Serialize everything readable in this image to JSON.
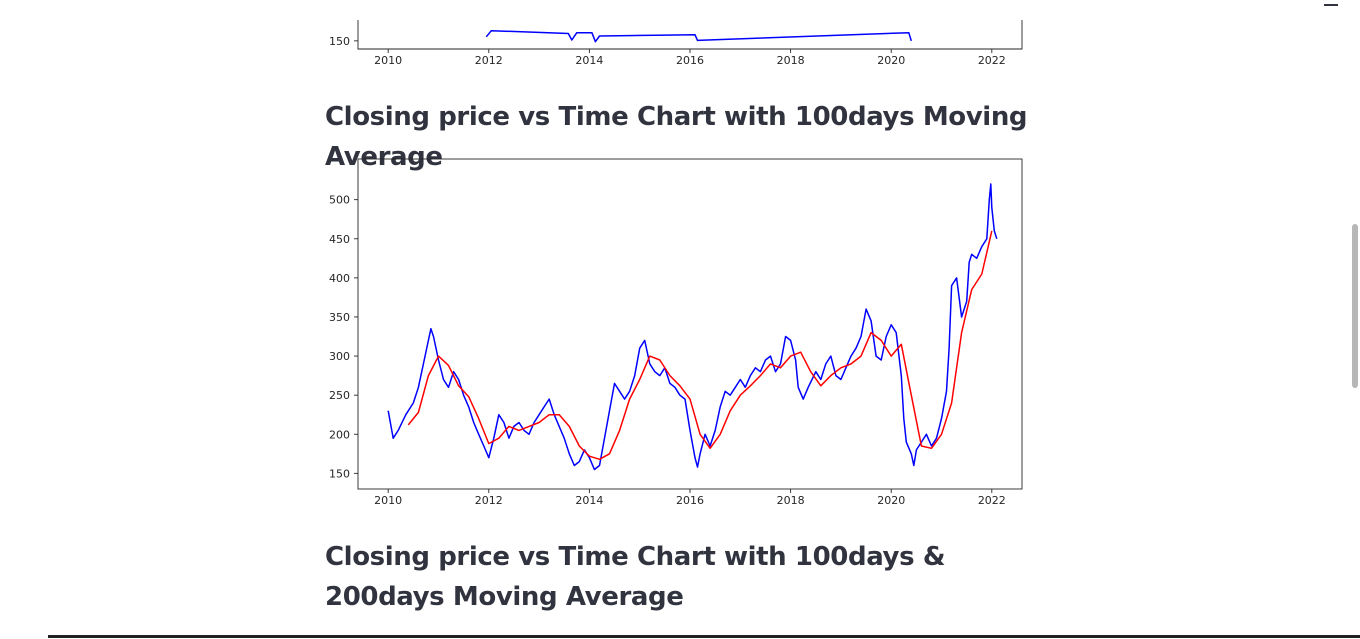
{
  "page": {
    "headings": [
      "Closing price vs Time Chart with 100days Moving Average",
      "Closing price vs Time Chart with 100days & 200days Moving Average"
    ]
  },
  "chart_data": [
    {
      "type": "line",
      "title": "",
      "xlabel": "",
      "ylabel": "",
      "xlim": [
        2009.4,
        2022.6
      ],
      "ylim": [
        130,
        545
      ],
      "x_ticks": [
        2010,
        2012,
        2014,
        2016,
        2018,
        2020,
        2022
      ],
      "y_ticks": [
        150
      ],
      "grid": false,
      "partially_visible": true,
      "series": [
        {
          "color": "#0000ff",
          "points": [
            [
              2011.95,
              160
            ],
            [
              2012.05,
              175
            ],
            [
              2013.58,
              168
            ],
            [
              2013.65,
              152
            ],
            [
              2013.75,
              170
            ],
            [
              2014.05,
              170
            ],
            [
              2014.12,
              148
            ],
            [
              2014.2,
              162
            ],
            [
              2016.1,
              165
            ],
            [
              2016.15,
              151
            ],
            [
              2020.35,
              170
            ],
            [
              2020.4,
              150
            ]
          ]
        }
      ]
    },
    {
      "type": "line",
      "title": "",
      "xlabel": "",
      "ylabel": "",
      "xlim": [
        2009.4,
        2022.6
      ],
      "ylim": [
        130,
        552
      ],
      "x_ticks": [
        2010,
        2012,
        2014,
        2016,
        2018,
        2020,
        2022
      ],
      "y_ticks": [
        150,
        200,
        250,
        300,
        350,
        400,
        450,
        500
      ],
      "grid": false,
      "series": [
        {
          "color": "#0000ff",
          "points": [
            [
              2010.0,
              230
            ],
            [
              2010.1,
              195
            ],
            [
              2010.2,
              205
            ],
            [
              2010.35,
              225
            ],
            [
              2010.5,
              240
            ],
            [
              2010.6,
              260
            ],
            [
              2010.7,
              290
            ],
            [
              2010.8,
              320
            ],
            [
              2010.85,
              335
            ],
            [
              2010.9,
              325
            ],
            [
              2011.0,
              295
            ],
            [
              2011.1,
              270
            ],
            [
              2011.2,
              260
            ],
            [
              2011.3,
              280
            ],
            [
              2011.4,
              270
            ],
            [
              2011.5,
              250
            ],
            [
              2011.6,
              235
            ],
            [
              2011.7,
              215
            ],
            [
              2011.8,
              200
            ],
            [
              2011.9,
              185
            ],
            [
              2012.0,
              170
            ],
            [
              2012.1,
              195
            ],
            [
              2012.2,
              225
            ],
            [
              2012.3,
              215
            ],
            [
              2012.4,
              195
            ],
            [
              2012.5,
              210
            ],
            [
              2012.6,
              215
            ],
            [
              2012.7,
              205
            ],
            [
              2012.8,
              200
            ],
            [
              2012.9,
              215
            ],
            [
              2013.0,
              225
            ],
            [
              2013.1,
              235
            ],
            [
              2013.2,
              245
            ],
            [
              2013.3,
              225
            ],
            [
              2013.4,
              210
            ],
            [
              2013.5,
              195
            ],
            [
              2013.6,
              175
            ],
            [
              2013.7,
              160
            ],
            [
              2013.8,
              165
            ],
            [
              2013.9,
              180
            ],
            [
              2014.0,
              170
            ],
            [
              2014.1,
              155
            ],
            [
              2014.2,
              160
            ],
            [
              2014.3,
              195
            ],
            [
              2014.4,
              230
            ],
            [
              2014.5,
              265
            ],
            [
              2014.6,
              255
            ],
            [
              2014.7,
              245
            ],
            [
              2014.8,
              255
            ],
            [
              2014.9,
              275
            ],
            [
              2015.0,
              310
            ],
            [
              2015.1,
              320
            ],
            [
              2015.2,
              290
            ],
            [
              2015.3,
              280
            ],
            [
              2015.4,
              275
            ],
            [
              2015.5,
              285
            ],
            [
              2015.6,
              265
            ],
            [
              2015.7,
              260
            ],
            [
              2015.8,
              250
            ],
            [
              2015.9,
              245
            ],
            [
              2016.0,
              205
            ],
            [
              2016.1,
              170
            ],
            [
              2016.15,
              158
            ],
            [
              2016.2,
              175
            ],
            [
              2016.3,
              200
            ],
            [
              2016.4,
              185
            ],
            [
              2016.5,
              205
            ],
            [
              2016.6,
              235
            ],
            [
              2016.7,
              255
            ],
            [
              2016.8,
              250
            ],
            [
              2016.9,
              260
            ],
            [
              2017.0,
              270
            ],
            [
              2017.1,
              260
            ],
            [
              2017.2,
              275
            ],
            [
              2017.3,
              285
            ],
            [
              2017.4,
              280
            ],
            [
              2017.5,
              295
            ],
            [
              2017.6,
              300
            ],
            [
              2017.7,
              280
            ],
            [
              2017.8,
              290
            ],
            [
              2017.9,
              325
            ],
            [
              2018.0,
              320
            ],
            [
              2018.1,
              295
            ],
            [
              2018.15,
              260
            ],
            [
              2018.25,
              245
            ],
            [
              2018.35,
              260
            ],
            [
              2018.5,
              280
            ],
            [
              2018.6,
              270
            ],
            [
              2018.7,
              290
            ],
            [
              2018.8,
              300
            ],
            [
              2018.9,
              275
            ],
            [
              2019.0,
              270
            ],
            [
              2019.1,
              285
            ],
            [
              2019.2,
              300
            ],
            [
              2019.3,
              310
            ],
            [
              2019.4,
              325
            ],
            [
              2019.5,
              360
            ],
            [
              2019.6,
              345
            ],
            [
              2019.7,
              300
            ],
            [
              2019.8,
              295
            ],
            [
              2019.9,
              325
            ],
            [
              2020.0,
              340
            ],
            [
              2020.1,
              330
            ],
            [
              2020.2,
              275
            ],
            [
              2020.25,
              220
            ],
            [
              2020.3,
              190
            ],
            [
              2020.4,
              175
            ],
            [
              2020.45,
              160
            ],
            [
              2020.5,
              180
            ],
            [
              2020.6,
              190
            ],
            [
              2020.7,
              200
            ],
            [
              2020.8,
              185
            ],
            [
              2020.9,
              195
            ],
            [
              2021.0,
              220
            ],
            [
              2021.1,
              255
            ],
            [
              2021.15,
              310
            ],
            [
              2021.2,
              390
            ],
            [
              2021.3,
              400
            ],
            [
              2021.4,
              350
            ],
            [
              2021.5,
              370
            ],
            [
              2021.55,
              420
            ],
            [
              2021.6,
              430
            ],
            [
              2021.7,
              425
            ],
            [
              2021.8,
              440
            ],
            [
              2021.9,
              450
            ],
            [
              2021.95,
              500
            ],
            [
              2021.98,
              520
            ],
            [
              2022.0,
              490
            ],
            [
              2022.05,
              460
            ],
            [
              2022.1,
              450
            ]
          ]
        },
        {
          "color": "#ff0000",
          "points": [
            [
              2010.4,
              212
            ],
            [
              2010.6,
              228
            ],
            [
              2010.8,
              275
            ],
            [
              2011.0,
              300
            ],
            [
              2011.2,
              288
            ],
            [
              2011.4,
              262
            ],
            [
              2011.6,
              248
            ],
            [
              2011.8,
              220
            ],
            [
              2012.0,
              188
            ],
            [
              2012.2,
              195
            ],
            [
              2012.4,
              210
            ],
            [
              2012.6,
              205
            ],
            [
              2012.8,
              210
            ],
            [
              2013.0,
              215
            ],
            [
              2013.2,
              225
            ],
            [
              2013.4,
              225
            ],
            [
              2013.6,
              210
            ],
            [
              2013.8,
              185
            ],
            [
              2014.0,
              172
            ],
            [
              2014.2,
              168
            ],
            [
              2014.4,
              175
            ],
            [
              2014.6,
              205
            ],
            [
              2014.8,
              245
            ],
            [
              2015.0,
              270
            ],
            [
              2015.2,
              300
            ],
            [
              2015.4,
              295
            ],
            [
              2015.6,
              275
            ],
            [
              2015.8,
              262
            ],
            [
              2016.0,
              245
            ],
            [
              2016.2,
              200
            ],
            [
              2016.4,
              182
            ],
            [
              2016.6,
              200
            ],
            [
              2016.8,
              230
            ],
            [
              2017.0,
              250
            ],
            [
              2017.2,
              262
            ],
            [
              2017.4,
              275
            ],
            [
              2017.6,
              290
            ],
            [
              2017.8,
              285
            ],
            [
              2018.0,
              300
            ],
            [
              2018.2,
              305
            ],
            [
              2018.4,
              280
            ],
            [
              2018.6,
              262
            ],
            [
              2018.8,
              275
            ],
            [
              2019.0,
              285
            ],
            [
              2019.2,
              290
            ],
            [
              2019.4,
              300
            ],
            [
              2019.6,
              330
            ],
            [
              2019.8,
              320
            ],
            [
              2020.0,
              300
            ],
            [
              2020.2,
              315
            ],
            [
              2020.4,
              250
            ],
            [
              2020.6,
              185
            ],
            [
              2020.8,
              182
            ],
            [
              2021.0,
              200
            ],
            [
              2021.2,
              240
            ],
            [
              2021.4,
              330
            ],
            [
              2021.6,
              385
            ],
            [
              2021.8,
              405
            ],
            [
              2022.0,
              460
            ]
          ]
        }
      ]
    }
  ]
}
